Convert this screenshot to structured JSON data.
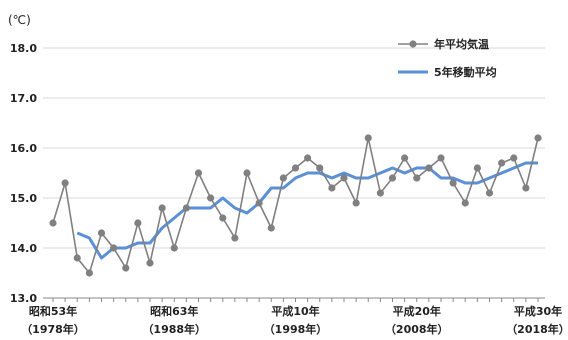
{
  "chart_data": {
    "type": "line",
    "unit_label": "(℃)",
    "ylim": [
      13.0,
      18.0
    ],
    "y_ticks": [
      "13.0",
      "14.0",
      "15.0",
      "16.0",
      "17.0",
      "18.0"
    ],
    "grid": true,
    "legend_position": "top-right",
    "x_labels": [
      {
        "year": 1978,
        "era": "昭和53年",
        "western": "（1978年）"
      },
      {
        "year": 1988,
        "era": "昭和63年",
        "western": "（1988年）"
      },
      {
        "year": 1998,
        "era": "平成10年",
        "western": "（1998年）"
      },
      {
        "year": 2008,
        "era": "平成20年",
        "western": "（2008年）"
      },
      {
        "year": 2018,
        "era": "平成30年",
        "western": "（2018年）"
      }
    ],
    "series": [
      {
        "name": "年平均気温",
        "color": "#808080",
        "x": [
          1978,
          1979,
          1980,
          1981,
          1982,
          1983,
          1984,
          1985,
          1986,
          1987,
          1988,
          1989,
          1990,
          1991,
          1992,
          1993,
          1994,
          1995,
          1996,
          1997,
          1998,
          1999,
          2000,
          2001,
          2002,
          2003,
          2004,
          2005,
          2006,
          2007,
          2008,
          2009,
          2010,
          2011,
          2012,
          2013,
          2014,
          2015,
          2016,
          2017,
          2018
        ],
        "values": [
          14.5,
          15.3,
          13.8,
          13.5,
          14.3,
          14.0,
          13.6,
          14.5,
          13.7,
          14.8,
          14.0,
          14.8,
          15.5,
          15.0,
          14.6,
          14.2,
          15.5,
          14.9,
          14.4,
          15.4,
          15.6,
          15.8,
          15.6,
          15.2,
          15.4,
          14.9,
          16.2,
          15.1,
          15.4,
          15.8,
          15.4,
          15.6,
          15.8,
          15.3,
          14.9,
          15.6,
          15.1,
          15.7,
          15.8,
          15.2,
          16.2
        ]
      },
      {
        "name": "5年移動平均",
        "color": "#5b8fd6",
        "x": [
          1980,
          1981,
          1982,
          1983,
          1984,
          1985,
          1986,
          1987,
          1988,
          1989,
          1990,
          1991,
          1992,
          1993,
          1994,
          1995,
          1996,
          1997,
          1998,
          1999,
          2000,
          2001,
          2002,
          2003,
          2004,
          2005,
          2006,
          2007,
          2008,
          2009,
          2010,
          2011,
          2012,
          2013,
          2014,
          2015,
          2016,
          2017,
          2018
        ],
        "values": [
          14.3,
          14.2,
          13.8,
          14.0,
          14.0,
          14.1,
          14.1,
          14.4,
          14.6,
          14.8,
          14.8,
          14.8,
          15.0,
          14.8,
          14.7,
          14.9,
          15.2,
          15.2,
          15.4,
          15.5,
          15.5,
          15.4,
          15.5,
          15.4,
          15.4,
          15.5,
          15.6,
          15.5,
          15.6,
          15.6,
          15.4,
          15.4,
          15.3,
          15.3,
          15.4,
          15.5,
          15.6,
          15.7,
          15.7
        ]
      }
    ]
  }
}
